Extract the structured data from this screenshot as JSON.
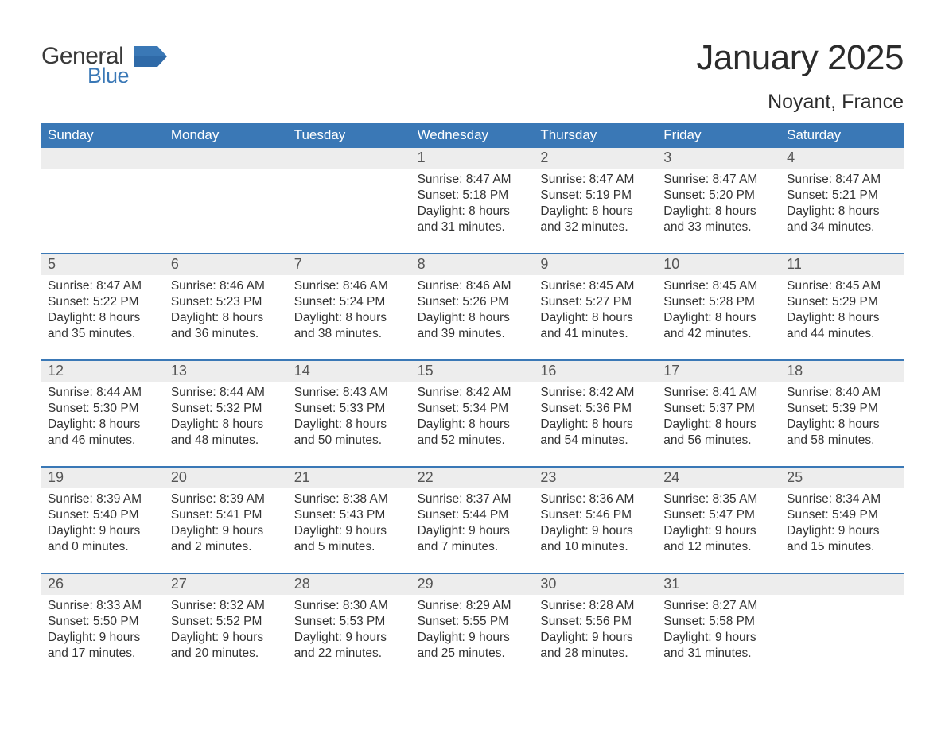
{
  "logo": {
    "text_top": "General",
    "text_bottom": "Blue",
    "mark_color": "#3a78b6",
    "text_top_color": "#3a3a3a",
    "text_bottom_color": "#3a78b6"
  },
  "header": {
    "month_title": "January 2025",
    "location": "Noyant, France"
  },
  "colors": {
    "weekday_bg": "#3a78b6",
    "weekday_fg": "#ffffff",
    "daynum_bg": "#ededed",
    "daynum_fg": "#555555",
    "week_border": "#3a78b6",
    "page_bg": "#ffffff",
    "body_text": "#333333"
  },
  "weekdays": [
    "Sunday",
    "Monday",
    "Tuesday",
    "Wednesday",
    "Thursday",
    "Friday",
    "Saturday"
  ],
  "weeks": [
    {
      "days": [
        {
          "num": "",
          "sunrise": "",
          "sunset": "",
          "daylight": ""
        },
        {
          "num": "",
          "sunrise": "",
          "sunset": "",
          "daylight": ""
        },
        {
          "num": "",
          "sunrise": "",
          "sunset": "",
          "daylight": ""
        },
        {
          "num": "1",
          "sunrise": "Sunrise: 8:47 AM",
          "sunset": "Sunset: 5:18 PM",
          "daylight": "Daylight: 8 hours and 31 minutes."
        },
        {
          "num": "2",
          "sunrise": "Sunrise: 8:47 AM",
          "sunset": "Sunset: 5:19 PM",
          "daylight": "Daylight: 8 hours and 32 minutes."
        },
        {
          "num": "3",
          "sunrise": "Sunrise: 8:47 AM",
          "sunset": "Sunset: 5:20 PM",
          "daylight": "Daylight: 8 hours and 33 minutes."
        },
        {
          "num": "4",
          "sunrise": "Sunrise: 8:47 AM",
          "sunset": "Sunset: 5:21 PM",
          "daylight": "Daylight: 8 hours and 34 minutes."
        }
      ]
    },
    {
      "days": [
        {
          "num": "5",
          "sunrise": "Sunrise: 8:47 AM",
          "sunset": "Sunset: 5:22 PM",
          "daylight": "Daylight: 8 hours and 35 minutes."
        },
        {
          "num": "6",
          "sunrise": "Sunrise: 8:46 AM",
          "sunset": "Sunset: 5:23 PM",
          "daylight": "Daylight: 8 hours and 36 minutes."
        },
        {
          "num": "7",
          "sunrise": "Sunrise: 8:46 AM",
          "sunset": "Sunset: 5:24 PM",
          "daylight": "Daylight: 8 hours and 38 minutes."
        },
        {
          "num": "8",
          "sunrise": "Sunrise: 8:46 AM",
          "sunset": "Sunset: 5:26 PM",
          "daylight": "Daylight: 8 hours and 39 minutes."
        },
        {
          "num": "9",
          "sunrise": "Sunrise: 8:45 AM",
          "sunset": "Sunset: 5:27 PM",
          "daylight": "Daylight: 8 hours and 41 minutes."
        },
        {
          "num": "10",
          "sunrise": "Sunrise: 8:45 AM",
          "sunset": "Sunset: 5:28 PM",
          "daylight": "Daylight: 8 hours and 42 minutes."
        },
        {
          "num": "11",
          "sunrise": "Sunrise: 8:45 AM",
          "sunset": "Sunset: 5:29 PM",
          "daylight": "Daylight: 8 hours and 44 minutes."
        }
      ]
    },
    {
      "days": [
        {
          "num": "12",
          "sunrise": "Sunrise: 8:44 AM",
          "sunset": "Sunset: 5:30 PM",
          "daylight": "Daylight: 8 hours and 46 minutes."
        },
        {
          "num": "13",
          "sunrise": "Sunrise: 8:44 AM",
          "sunset": "Sunset: 5:32 PM",
          "daylight": "Daylight: 8 hours and 48 minutes."
        },
        {
          "num": "14",
          "sunrise": "Sunrise: 8:43 AM",
          "sunset": "Sunset: 5:33 PM",
          "daylight": "Daylight: 8 hours and 50 minutes."
        },
        {
          "num": "15",
          "sunrise": "Sunrise: 8:42 AM",
          "sunset": "Sunset: 5:34 PM",
          "daylight": "Daylight: 8 hours and 52 minutes."
        },
        {
          "num": "16",
          "sunrise": "Sunrise: 8:42 AM",
          "sunset": "Sunset: 5:36 PM",
          "daylight": "Daylight: 8 hours and 54 minutes."
        },
        {
          "num": "17",
          "sunrise": "Sunrise: 8:41 AM",
          "sunset": "Sunset: 5:37 PM",
          "daylight": "Daylight: 8 hours and 56 minutes."
        },
        {
          "num": "18",
          "sunrise": "Sunrise: 8:40 AM",
          "sunset": "Sunset: 5:39 PM",
          "daylight": "Daylight: 8 hours and 58 minutes."
        }
      ]
    },
    {
      "days": [
        {
          "num": "19",
          "sunrise": "Sunrise: 8:39 AM",
          "sunset": "Sunset: 5:40 PM",
          "daylight": "Daylight: 9 hours and 0 minutes."
        },
        {
          "num": "20",
          "sunrise": "Sunrise: 8:39 AM",
          "sunset": "Sunset: 5:41 PM",
          "daylight": "Daylight: 9 hours and 2 minutes."
        },
        {
          "num": "21",
          "sunrise": "Sunrise: 8:38 AM",
          "sunset": "Sunset: 5:43 PM",
          "daylight": "Daylight: 9 hours and 5 minutes."
        },
        {
          "num": "22",
          "sunrise": "Sunrise: 8:37 AM",
          "sunset": "Sunset: 5:44 PM",
          "daylight": "Daylight: 9 hours and 7 minutes."
        },
        {
          "num": "23",
          "sunrise": "Sunrise: 8:36 AM",
          "sunset": "Sunset: 5:46 PM",
          "daylight": "Daylight: 9 hours and 10 minutes."
        },
        {
          "num": "24",
          "sunrise": "Sunrise: 8:35 AM",
          "sunset": "Sunset: 5:47 PM",
          "daylight": "Daylight: 9 hours and 12 minutes."
        },
        {
          "num": "25",
          "sunrise": "Sunrise: 8:34 AM",
          "sunset": "Sunset: 5:49 PM",
          "daylight": "Daylight: 9 hours and 15 minutes."
        }
      ]
    },
    {
      "days": [
        {
          "num": "26",
          "sunrise": "Sunrise: 8:33 AM",
          "sunset": "Sunset: 5:50 PM",
          "daylight": "Daylight: 9 hours and 17 minutes."
        },
        {
          "num": "27",
          "sunrise": "Sunrise: 8:32 AM",
          "sunset": "Sunset: 5:52 PM",
          "daylight": "Daylight: 9 hours and 20 minutes."
        },
        {
          "num": "28",
          "sunrise": "Sunrise: 8:30 AM",
          "sunset": "Sunset: 5:53 PM",
          "daylight": "Daylight: 9 hours and 22 minutes."
        },
        {
          "num": "29",
          "sunrise": "Sunrise: 8:29 AM",
          "sunset": "Sunset: 5:55 PM",
          "daylight": "Daylight: 9 hours and 25 minutes."
        },
        {
          "num": "30",
          "sunrise": "Sunrise: 8:28 AM",
          "sunset": "Sunset: 5:56 PM",
          "daylight": "Daylight: 9 hours and 28 minutes."
        },
        {
          "num": "31",
          "sunrise": "Sunrise: 8:27 AM",
          "sunset": "Sunset: 5:58 PM",
          "daylight": "Daylight: 9 hours and 31 minutes."
        },
        {
          "num": "",
          "sunrise": "",
          "sunset": "",
          "daylight": ""
        }
      ]
    }
  ]
}
